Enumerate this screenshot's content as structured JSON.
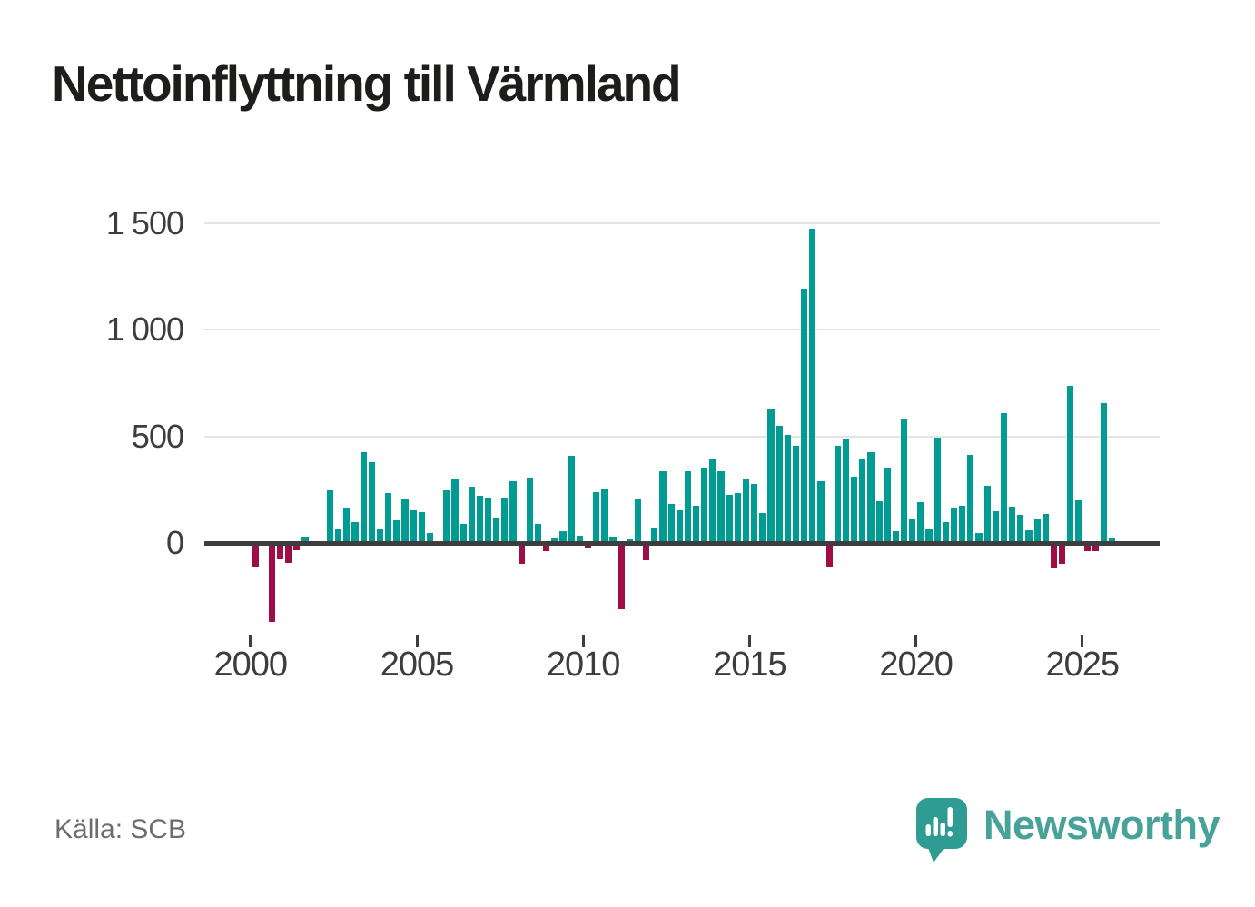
{
  "title": "Nettoinflyttning till Värmland",
  "source": "Källa: SCB",
  "branding": {
    "name": "Newsworthy",
    "icon": "speech-bubble-bar-chart-icon",
    "color": "#2f9c93"
  },
  "chart_data": {
    "type": "bar",
    "title": "Nettoinflyttning till Värmland",
    "xlabel": "",
    "ylabel": "",
    "frequency": "quarterly",
    "x_axis_ticks": [
      "2000",
      "2005",
      "2010",
      "2015",
      "2020",
      "2025"
    ],
    "y_axis_ticks": [
      {
        "value": 0,
        "label": "0"
      },
      {
        "value": 500,
        "label": "500"
      },
      {
        "value": 1000,
        "label": "1 000"
      },
      {
        "value": 1500,
        "label": "1 500"
      }
    ],
    "grid": "horizontal-only",
    "legend": "none",
    "ylim": [
      -400,
      1550
    ],
    "colors": {
      "positive": "#009b93",
      "negative": "#a00d46"
    },
    "quarters": [
      "2000Q1",
      "2000Q2",
      "2000Q3",
      "2000Q4",
      "2001Q1",
      "2001Q2",
      "2001Q3",
      "2001Q4",
      "2002Q1",
      "2002Q2",
      "2002Q3",
      "2002Q4",
      "2003Q1",
      "2003Q2",
      "2003Q3",
      "2003Q4",
      "2004Q1",
      "2004Q2",
      "2004Q3",
      "2004Q4",
      "2005Q1",
      "2005Q2",
      "2005Q3",
      "2005Q4",
      "2006Q1",
      "2006Q2",
      "2006Q3",
      "2006Q4",
      "2007Q1",
      "2007Q2",
      "2007Q3",
      "2007Q4",
      "2008Q1",
      "2008Q2",
      "2008Q3",
      "2008Q4",
      "2009Q1",
      "2009Q2",
      "2009Q3",
      "2009Q4",
      "2010Q1",
      "2010Q2",
      "2010Q3",
      "2010Q4",
      "2011Q1",
      "2011Q2",
      "2011Q3",
      "2011Q4",
      "2012Q1",
      "2012Q2",
      "2012Q3",
      "2012Q4",
      "2013Q1",
      "2013Q2",
      "2013Q3",
      "2013Q4",
      "2014Q1",
      "2014Q2",
      "2014Q3",
      "2014Q4",
      "2015Q1",
      "2015Q2",
      "2015Q3",
      "2015Q4",
      "2016Q1",
      "2016Q2",
      "2016Q3",
      "2016Q4",
      "2017Q1",
      "2017Q2",
      "2017Q3",
      "2017Q4",
      "2018Q1",
      "2018Q2",
      "2018Q3",
      "2018Q4",
      "2019Q1",
      "2019Q2",
      "2019Q3",
      "2019Q4",
      "2020Q1",
      "2020Q2",
      "2020Q3",
      "2020Q4",
      "2021Q1",
      "2021Q2",
      "2021Q3",
      "2021Q4",
      "2022Q1",
      "2022Q2",
      "2022Q3",
      "2022Q4",
      "2023Q1",
      "2023Q2",
      "2023Q3",
      "2023Q4",
      "2024Q1",
      "2024Q2",
      "2024Q3",
      "2024Q4",
      "2025Q1",
      "2025Q2",
      "2025Q3",
      "2025Q4"
    ],
    "values": [
      -115,
      0,
      -370,
      -75,
      -95,
      -35,
      25,
      0,
      0,
      245,
      65,
      160,
      100,
      425,
      380,
      65,
      235,
      105,
      205,
      155,
      145,
      45,
      10,
      245,
      300,
      90,
      265,
      220,
      210,
      120,
      215,
      290,
      -100,
      305,
      90,
      -40,
      20,
      55,
      410,
      35,
      -25,
      240,
      250,
      30,
      -310,
      15,
      205,
      -80,
      70,
      335,
      185,
      155,
      335,
      175,
      355,
      390,
      335,
      225,
      235,
      300,
      275,
      140,
      630,
      550,
      505,
      455,
      1195,
      1475,
      290,
      -110,
      455,
      490,
      310,
      390,
      425,
      195,
      350,
      55,
      585,
      110,
      190,
      65,
      495,
      100,
      165,
      175,
      415,
      45,
      270,
      150,
      610,
      170,
      130,
      60,
      110,
      135,
      -120,
      -100,
      735,
      200,
      -40,
      -40,
      655,
      20
    ]
  }
}
